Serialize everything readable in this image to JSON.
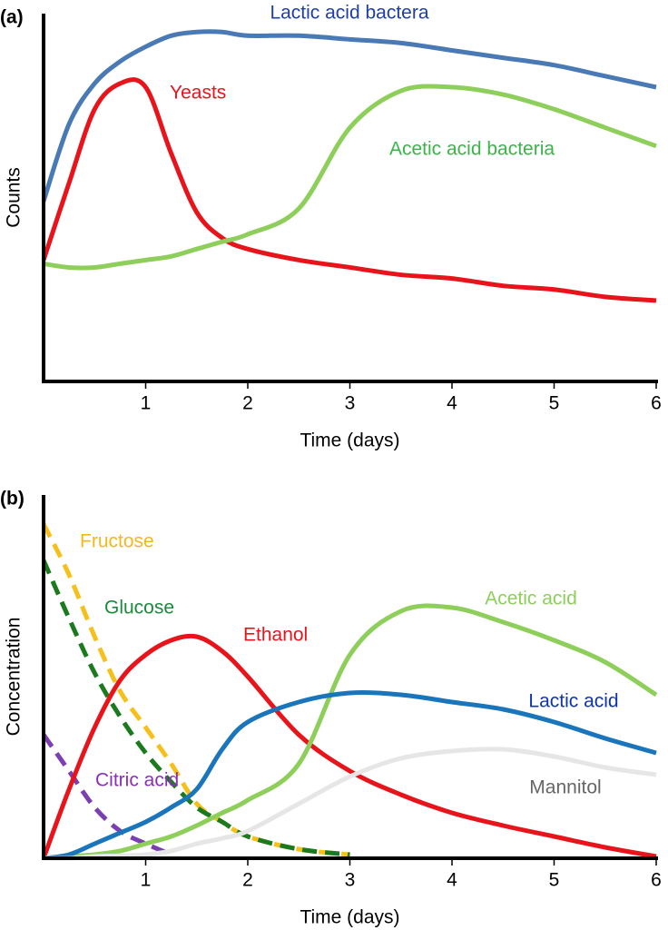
{
  "chart_data": [
    {
      "type": "line",
      "panel_label": "(a)",
      "x_label": "Time (days)",
      "y_label": "Counts",
      "xlim": [
        0,
        6
      ],
      "xticks": [
        1,
        2,
        3,
        4,
        5,
        6
      ],
      "ylim": [
        0,
        100
      ],
      "x": [
        0,
        0.25,
        0.5,
        0.75,
        1,
        1.25,
        1.5,
        1.75,
        2,
        2.5,
        3,
        3.5,
        4,
        4.5,
        5,
        5.5,
        6
      ],
      "series": [
        {
          "name": "Lactic acid bactera",
          "color": "#4a7ab5",
          "label_color": "#1f3fa8",
          "dash": false,
          "values": [
            49,
            70,
            81,
            87,
            91,
            94,
            95,
            95,
            94,
            94,
            93,
            92,
            90,
            88,
            86,
            83,
            80
          ]
        },
        {
          "name": "Yeasts",
          "color": "#e8141b",
          "label_color": "#e8141b",
          "dash": false,
          "values": [
            33,
            54,
            74,
            81,
            80,
            62,
            46,
            39,
            36,
            33,
            31,
            29,
            28,
            26,
            25,
            23,
            22
          ]
        },
        {
          "name": "Acetic acid bacteria",
          "color": "#8dcf5a",
          "label_color": "#3cb44a",
          "dash": false,
          "values": [
            32,
            31,
            31,
            32,
            33,
            34,
            36,
            38,
            40,
            47,
            69,
            79,
            80,
            78,
            74,
            69,
            64
          ]
        }
      ]
    },
    {
      "type": "line",
      "panel_label": "(b)",
      "x_label": "Time (days)",
      "y_label": "Concentration",
      "xlim": [
        0,
        6
      ],
      "xticks": [
        1,
        2,
        3,
        4,
        5,
        6
      ],
      "ylim": [
        0,
        100
      ],
      "x": [
        0,
        0.25,
        0.5,
        0.75,
        1,
        1.25,
        1.5,
        1.75,
        2,
        2.5,
        3,
        3.5,
        4,
        4.5,
        5,
        5.5,
        6
      ],
      "series": [
        {
          "name": "Fructose",
          "color": "#f5c01c",
          "label_color": "#f2b81d",
          "dash": true,
          "values": [
            92,
            78,
            61,
            46,
            36,
            26,
            15,
            10,
            6,
            2.5,
            1,
            null,
            null,
            null,
            null,
            null,
            null
          ]
        },
        {
          "name": "Glucose",
          "color": "#1b7a1e",
          "label_color": "#1a8a3b",
          "dash": true,
          "values": [
            82,
            66,
            51,
            39,
            29,
            21,
            14,
            10,
            6,
            2.5,
            1,
            null,
            null,
            null,
            null,
            null,
            null
          ]
        },
        {
          "name": "Citric acid",
          "color": "#7a3fb0",
          "label_color": "#8a2fb8",
          "dash": true,
          "values": [
            34,
            24,
            14,
            7.5,
            4,
            1,
            null,
            null,
            null,
            null,
            null,
            null,
            null,
            null,
            null,
            null,
            null
          ]
        },
        {
          "name": "Ethanol",
          "color": "#e8141b",
          "label_color": "#e8141b",
          "dash": false,
          "values": [
            0,
            19,
            36,
            49,
            56,
            60,
            61,
            57,
            50,
            34,
            24,
            17.5,
            12.5,
            9,
            6,
            3,
            0.5
          ]
        },
        {
          "name": "Acetic acid",
          "color": "#8dcf5a",
          "label_color": "#8ccf5a",
          "dash": false,
          "values": [
            0,
            0.5,
            1,
            2,
            4,
            6,
            9,
            12.5,
            16,
            26,
            56,
            68,
            69,
            65,
            60,
            54,
            45
          ]
        },
        {
          "name": "Lactic acid",
          "color": "#1a75bb",
          "label_color": "#1033b0",
          "dash": false,
          "values": [
            0,
            1,
            4,
            7,
            10,
            14,
            19,
            30,
            37.5,
            43,
            45.5,
            45,
            43,
            41,
            37.5,
            33,
            29
          ]
        },
        {
          "name": "Mannitol",
          "color": "#e6e6e6",
          "label_color": "#666666",
          "dash": false,
          "values": [
            0,
            0,
            0.5,
            0.7,
            1,
            2,
            4,
            5.5,
            7.5,
            15,
            22.5,
            27.5,
            29.5,
            30,
            28,
            25,
            23
          ]
        }
      ]
    }
  ]
}
